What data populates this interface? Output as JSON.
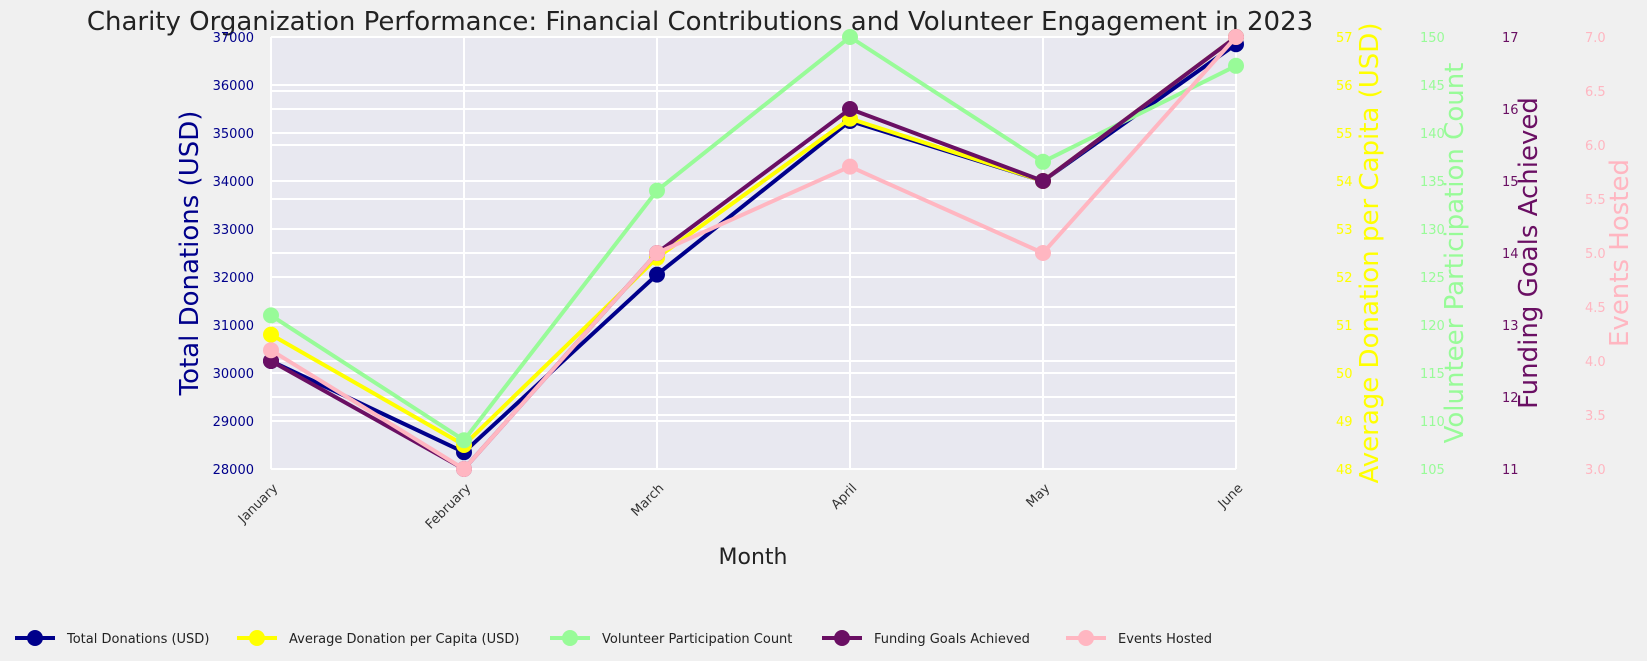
{
  "chart_data": {
    "type": "line",
    "title": "Charity Organization Performance: Financial Contributions and Volunteer Engagement in 2023",
    "xlabel": "Month",
    "categories": [
      "January",
      "February",
      "March",
      "April",
      "May",
      "June"
    ],
    "grid": true,
    "legend_position": "bottom",
    "series": [
      {
        "key": "donations",
        "name": "Total Donations (USD)",
        "color": "#00008b",
        "values": [
          30250,
          28350,
          32050,
          35250,
          34000,
          36850
        ],
        "ylabel": "Total Donations (USD)",
        "ylim": [
          28000,
          37000
        ],
        "ticks": [
          28000,
          29000,
          30000,
          31000,
          32000,
          33000,
          34000,
          35000,
          36000,
          37000
        ]
      },
      {
        "key": "avg_donation",
        "name": "Average Donation per Capita (USD)",
        "color": "#ffff00",
        "values": [
          50.8,
          48.5,
          52.4,
          55.3,
          54.0,
          57.0
        ],
        "ylabel": "Average Donation per Capita (USD)",
        "ylim": [
          48,
          57
        ],
        "ticks": [
          48,
          49,
          50,
          51,
          52,
          53,
          54,
          55,
          56,
          57
        ]
      },
      {
        "key": "volunteers",
        "name": "Volunteer Participation Count",
        "color": "#98fb98",
        "values": [
          121,
          108,
          134,
          150,
          137,
          147
        ],
        "ylabel": "Volunteer Participation Count",
        "ylim": [
          105,
          150
        ],
        "ticks": [
          105,
          110,
          115,
          120,
          125,
          130,
          135,
          140,
          145,
          150
        ]
      },
      {
        "key": "goals",
        "name": "Funding Goals Achieved",
        "color": "#6a0f63",
        "values": [
          12.5,
          11,
          14,
          16,
          15,
          17
        ],
        "ylabel": "Funding Goals Achieved",
        "ylim": [
          11,
          17
        ],
        "ticks": [
          11,
          12,
          13,
          14,
          15,
          16,
          17
        ]
      },
      {
        "key": "events",
        "name": "Events Hosted",
        "color": "#ffb6c1",
        "values": [
          4.1,
          3.0,
          5.0,
          5.8,
          5.0,
          7.0
        ],
        "ylabel": "Events Hosted",
        "ylim": [
          3.0,
          7.0
        ],
        "ticks": [
          "3.0",
          "3.5",
          "4.0",
          "4.5",
          "5.0",
          "5.5",
          "6.0",
          "6.5",
          "7.0"
        ]
      }
    ]
  }
}
